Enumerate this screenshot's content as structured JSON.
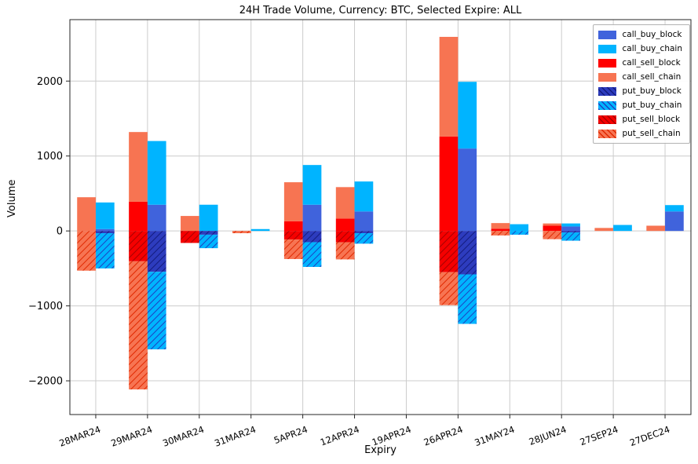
{
  "chart_data": {
    "type": "bar",
    "title": "24H Trade Volume, Currency: BTC, Selected Expire: ALL",
    "xlabel": "Expiry",
    "ylabel": "Volume",
    "ylim": [
      -2450,
      2820
    ],
    "yticks": [
      -2000,
      -1000,
      0,
      1000,
      2000
    ],
    "grid": true,
    "legend_position": "upper right",
    "categories": [
      "28MAR24",
      "29MAR24",
      "30MAR24",
      "31MAR24",
      "5APR24",
      "12APR24",
      "19APR24",
      "26APR24",
      "31MAY24",
      "28JUN24",
      "27SEP24",
      "27DEC24"
    ],
    "series": [
      {
        "name": "call_buy_block",
        "bar": "buy",
        "side": "pos",
        "color": "#4063DC",
        "hatch": null,
        "values": [
          25,
          350,
          0,
          0,
          350,
          260,
          0,
          1100,
          0,
          60,
          0,
          260
        ]
      },
      {
        "name": "call_buy_chain",
        "bar": "buy",
        "side": "pos",
        "color": "#00B4FF",
        "hatch": null,
        "values": [
          355,
          850,
          350,
          25,
          530,
          400,
          0,
          890,
          90,
          40,
          80,
          85
        ]
      },
      {
        "name": "call_sell_block",
        "bar": "sell",
        "side": "pos",
        "color": "#FF0000",
        "hatch": null,
        "values": [
          0,
          390,
          0,
          0,
          130,
          165,
          0,
          1260,
          30,
          70,
          0,
          0
        ]
      },
      {
        "name": "call_sell_chain",
        "bar": "sell",
        "side": "pos",
        "color": "#F77452",
        "hatch": null,
        "values": [
          450,
          930,
          200,
          0,
          520,
          420,
          0,
          1330,
          75,
          30,
          40,
          70
        ]
      },
      {
        "name": "put_buy_block",
        "bar": "buy",
        "side": "neg",
        "color": "#2D3CBE",
        "hatch": "#141C7E",
        "values": [
          -30,
          -545,
          -50,
          0,
          -150,
          -30,
          0,
          -580,
          0,
          -20,
          0,
          0
        ]
      },
      {
        "name": "put_buy_chain",
        "bar": "buy",
        "side": "neg",
        "color": "#00B4FF",
        "hatch": "#1E40C0",
        "values": [
          -470,
          -1035,
          -180,
          0,
          -330,
          -140,
          0,
          -660,
          -50,
          -110,
          0,
          0
        ]
      },
      {
        "name": "put_sell_block",
        "bar": "sell",
        "side": "neg",
        "color": "#F50000",
        "hatch": "#A80000",
        "values": [
          0,
          -405,
          -160,
          0,
          -115,
          -150,
          0,
          -550,
          0,
          0,
          0,
          0
        ]
      },
      {
        "name": "put_sell_chain",
        "bar": "sell",
        "side": "neg",
        "color": "#F77452",
        "hatch": "#E02800",
        "values": [
          -530,
          -1710,
          0,
          -30,
          -260,
          -230,
          0,
          -440,
          -60,
          -110,
          0,
          0
        ]
      }
    ],
    "axis": {
      "frame_color": "#262626",
      "grid_color": "#cccccc",
      "tick_color": "#262626"
    }
  }
}
